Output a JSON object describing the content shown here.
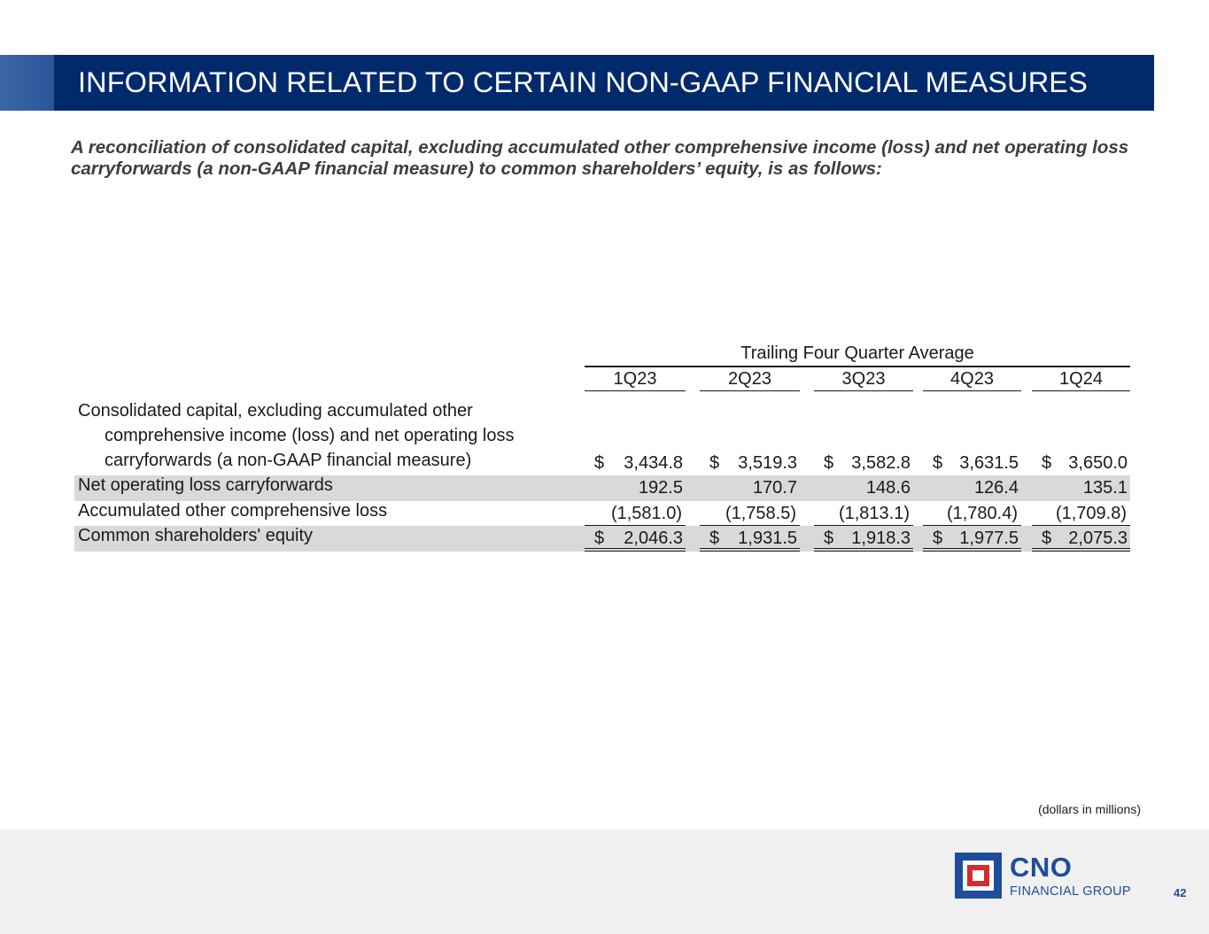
{
  "header": {
    "title": "INFORMATION RELATED TO CERTAIN NON-GAAP FINANCIAL MEASURES"
  },
  "subtitle": "A reconciliation of consolidated capital, excluding accumulated other comprehensive income (loss) and net operating loss carryforwards (a non-GAAP financial measure) to common shareholders’ equity, is as follows:",
  "table": {
    "group_header": "Trailing Four Quarter Average",
    "columns": [
      "1Q23",
      "2Q23",
      "3Q23",
      "4Q23",
      "1Q24"
    ],
    "rows": [
      {
        "label_lines": [
          "Consolidated capital, excluding accumulated other",
          "comprehensive income (loss) and net operating loss",
          "carryforwards (a non-GAAP financial measure)"
        ],
        "currency": "$",
        "values": [
          "3,434.8",
          "3,519.3",
          "3,582.8",
          "3,631.5",
          "3,650.0"
        ]
      },
      {
        "label": "Net operating loss carryforwards",
        "currency": "",
        "values": [
          "192.5",
          "170.7",
          "148.6",
          "126.4",
          "135.1"
        ]
      },
      {
        "label": "Accumulated other comprehensive loss",
        "currency": "",
        "values": [
          "(1,581.0)",
          "(1,758.5)",
          "(1,813.1)",
          "(1,780.4)",
          "(1,709.8)"
        ]
      },
      {
        "label": "Common shareholders' equity",
        "currency": "$",
        "values": [
          "2,046.3",
          "1,931.5",
          "1,918.3",
          "1,977.5",
          "2,075.3"
        ]
      }
    ]
  },
  "units_note": "(dollars in millions)",
  "footer": {
    "logo_name": "CNO",
    "logo_sub": "FINANCIAL GROUP",
    "page_number": "42"
  }
}
